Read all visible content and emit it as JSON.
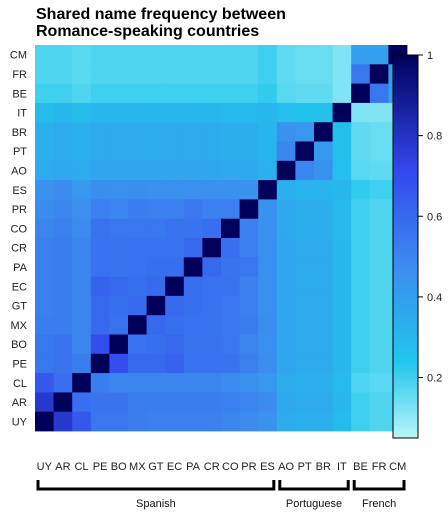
{
  "chart_data": {
    "type": "heatmap",
    "title_lines": [
      "Shared name frequency between",
      "Romance-speaking countries"
    ],
    "x_categories": [
      "UY",
      "AR",
      "CL",
      "PE",
      "BO",
      "MX",
      "GT",
      "EC",
      "PA",
      "CR",
      "CO",
      "PR",
      "ES",
      "AO",
      "PT",
      "BR",
      "IT",
      "BE",
      "FR",
      "CM"
    ],
    "y_categories": [
      "CM",
      "FR",
      "BE",
      "IT",
      "BR",
      "PT",
      "AO",
      "ES",
      "PR",
      "CO",
      "CR",
      "PA",
      "EC",
      "GT",
      "MX",
      "BO",
      "PE",
      "CL",
      "AR",
      "UY"
    ],
    "groups": [
      {
        "label": "Spanish",
        "from": "UY",
        "to": "ES"
      },
      {
        "label": "Portuguese",
        "from": "AO",
        "to": "IT"
      },
      {
        "label": "French",
        "from": "BE",
        "to": "CM"
      }
    ],
    "colorbar": {
      "min": 0.05,
      "max": 1.0,
      "ticks": [
        "1",
        "0.8",
        "0.6",
        "0.4",
        "0.2"
      ],
      "tick_values": [
        1.0,
        0.8,
        0.6,
        0.4,
        0.2
      ]
    },
    "colors": {
      "low": "#b8f6f9",
      "mid1": "#20c6ec",
      "mid2": "#3c8cee",
      "mid3": "#3248ee",
      "high": "#00005a"
    },
    "matrix_rows_ordered_like_x": [
      [
        1.0,
        0.78,
        0.66,
        0.55,
        0.55,
        0.53,
        0.52,
        0.52,
        0.52,
        0.52,
        0.5,
        0.48,
        0.45,
        0.35,
        0.33,
        0.33,
        0.28,
        0.2,
        0.18,
        0.18
      ],
      [
        0.78,
        1.0,
        0.58,
        0.56,
        0.56,
        0.53,
        0.53,
        0.53,
        0.53,
        0.53,
        0.52,
        0.5,
        0.48,
        0.36,
        0.35,
        0.35,
        0.3,
        0.2,
        0.18,
        0.18
      ],
      [
        0.66,
        0.58,
        1.0,
        0.53,
        0.5,
        0.5,
        0.5,
        0.5,
        0.5,
        0.5,
        0.48,
        0.46,
        0.43,
        0.35,
        0.33,
        0.33,
        0.28,
        0.18,
        0.17,
        0.17
      ],
      [
        0.55,
        0.56,
        0.53,
        1.0,
        0.7,
        0.6,
        0.6,
        0.62,
        0.57,
        0.57,
        0.57,
        0.52,
        0.47,
        0.37,
        0.35,
        0.35,
        0.3,
        0.2,
        0.18,
        0.18
      ],
      [
        0.55,
        0.56,
        0.5,
        0.7,
        1.0,
        0.57,
        0.58,
        0.6,
        0.56,
        0.56,
        0.55,
        0.5,
        0.46,
        0.37,
        0.35,
        0.35,
        0.3,
        0.2,
        0.18,
        0.18
      ],
      [
        0.53,
        0.53,
        0.5,
        0.6,
        0.57,
        1.0,
        0.6,
        0.58,
        0.57,
        0.57,
        0.55,
        0.53,
        0.47,
        0.37,
        0.35,
        0.35,
        0.3,
        0.2,
        0.18,
        0.18
      ],
      [
        0.52,
        0.53,
        0.5,
        0.6,
        0.58,
        0.6,
        1.0,
        0.6,
        0.58,
        0.57,
        0.55,
        0.52,
        0.46,
        0.37,
        0.35,
        0.35,
        0.3,
        0.2,
        0.18,
        0.18
      ],
      [
        0.52,
        0.53,
        0.5,
        0.62,
        0.6,
        0.58,
        0.6,
        1.0,
        0.58,
        0.57,
        0.57,
        0.52,
        0.46,
        0.37,
        0.35,
        0.35,
        0.3,
        0.2,
        0.18,
        0.18
      ],
      [
        0.52,
        0.53,
        0.5,
        0.57,
        0.56,
        0.57,
        0.58,
        0.58,
        1.0,
        0.6,
        0.56,
        0.55,
        0.46,
        0.37,
        0.35,
        0.35,
        0.3,
        0.2,
        0.18,
        0.18
      ],
      [
        0.52,
        0.53,
        0.5,
        0.57,
        0.56,
        0.57,
        0.57,
        0.57,
        0.6,
        1.0,
        0.58,
        0.52,
        0.46,
        0.37,
        0.35,
        0.35,
        0.3,
        0.2,
        0.18,
        0.18
      ],
      [
        0.5,
        0.52,
        0.48,
        0.57,
        0.55,
        0.55,
        0.55,
        0.57,
        0.56,
        0.58,
        1.0,
        0.52,
        0.46,
        0.36,
        0.34,
        0.34,
        0.29,
        0.2,
        0.18,
        0.18
      ],
      [
        0.48,
        0.5,
        0.46,
        0.52,
        0.5,
        0.53,
        0.52,
        0.52,
        0.55,
        0.52,
        0.52,
        1.0,
        0.45,
        0.36,
        0.34,
        0.34,
        0.29,
        0.2,
        0.18,
        0.18
      ],
      [
        0.45,
        0.48,
        0.43,
        0.47,
        0.46,
        0.47,
        0.46,
        0.46,
        0.46,
        0.46,
        0.46,
        0.45,
        1.0,
        0.33,
        0.31,
        0.31,
        0.3,
        0.22,
        0.2,
        0.2
      ],
      [
        0.35,
        0.36,
        0.35,
        0.37,
        0.37,
        0.37,
        0.37,
        0.37,
        0.37,
        0.37,
        0.36,
        0.36,
        0.33,
        1.0,
        0.5,
        0.45,
        0.27,
        0.17,
        0.16,
        0.16
      ],
      [
        0.33,
        0.35,
        0.33,
        0.35,
        0.35,
        0.35,
        0.35,
        0.35,
        0.35,
        0.35,
        0.34,
        0.34,
        0.31,
        0.5,
        1.0,
        0.43,
        0.26,
        0.16,
        0.15,
        0.15
      ],
      [
        0.33,
        0.35,
        0.33,
        0.35,
        0.35,
        0.35,
        0.35,
        0.35,
        0.35,
        0.35,
        0.34,
        0.34,
        0.31,
        0.45,
        0.43,
        1.0,
        0.26,
        0.16,
        0.15,
        0.15
      ],
      [
        0.28,
        0.3,
        0.28,
        0.3,
        0.3,
        0.3,
        0.3,
        0.3,
        0.3,
        0.3,
        0.29,
        0.29,
        0.3,
        0.27,
        0.26,
        0.26,
        1.0,
        0.12,
        0.12,
        0.12
      ],
      [
        0.2,
        0.2,
        0.18,
        0.2,
        0.2,
        0.2,
        0.2,
        0.2,
        0.2,
        0.2,
        0.2,
        0.2,
        0.22,
        0.17,
        0.16,
        0.16,
        0.12,
        1.0,
        0.55,
        0.4
      ],
      [
        0.18,
        0.18,
        0.17,
        0.18,
        0.18,
        0.18,
        0.18,
        0.18,
        0.18,
        0.18,
        0.18,
        0.18,
        0.2,
        0.16,
        0.15,
        0.15,
        0.12,
        0.55,
        1.0,
        0.4
      ],
      [
        0.18,
        0.18,
        0.17,
        0.18,
        0.18,
        0.18,
        0.18,
        0.18,
        0.18,
        0.18,
        0.18,
        0.18,
        0.2,
        0.16,
        0.15,
        0.15,
        0.12,
        0.4,
        0.4,
        1.0
      ]
    ]
  }
}
